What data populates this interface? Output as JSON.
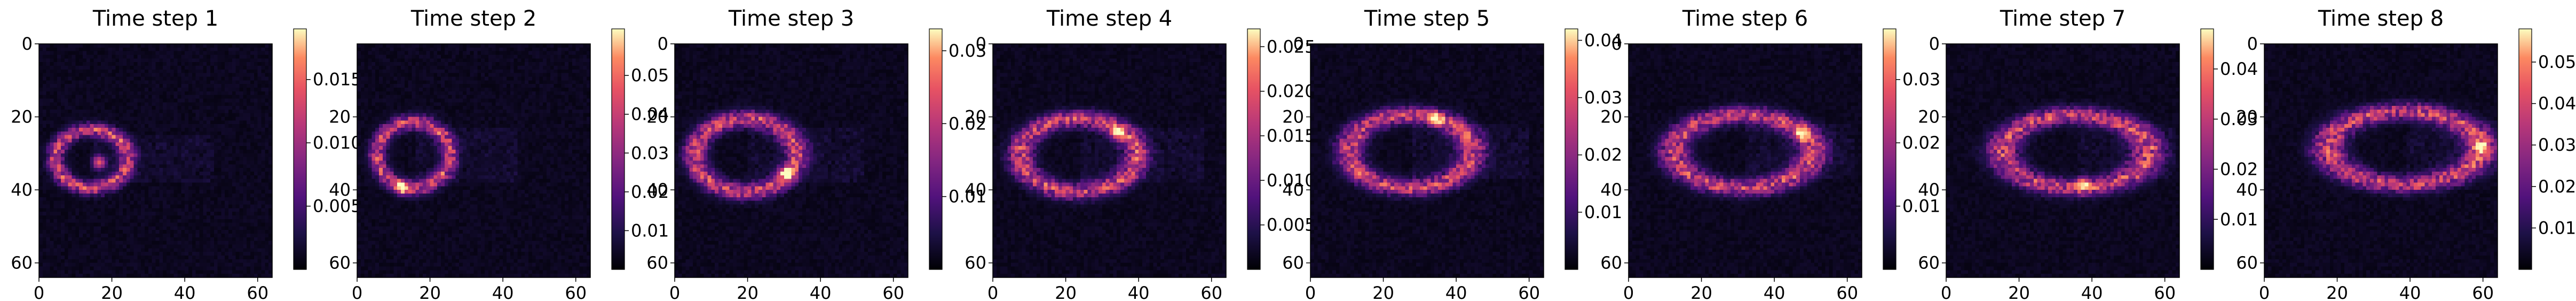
{
  "chart_data": {
    "type": "heatmap",
    "colormap": "magma",
    "grid": false,
    "panels": [
      {
        "title": "Time step 1",
        "xticks": [
          "0",
          "20",
          "40",
          "60"
        ],
        "yticks": [
          "0",
          "20",
          "40",
          "60"
        ],
        "xlim": [
          0,
          64
        ],
        "ylim": [
          64,
          0
        ],
        "colorbar": {
          "range": [
            0,
            0.019
          ],
          "ticks": [
            "0.005",
            "0.010",
            "0.015"
          ],
          "tick_values": [
            0.005,
            0.01,
            0.015
          ]
        },
        "feature": {
          "cx": 14,
          "cy": 31,
          "rx": 10,
          "ry": 8,
          "tail": 48,
          "peak_x": 16,
          "peak_y": 32
        }
      },
      {
        "title": "Time step 2",
        "xticks": [
          "0",
          "20",
          "40",
          "60"
        ],
        "yticks": [
          "20",
          "40",
          "60"
        ],
        "xlim": [
          0,
          64
        ],
        "ylim": [
          64,
          0
        ],
        "colorbar": {
          "range": [
            0,
            0.062
          ],
          "ticks": [
            "0.01",
            "0.02",
            "0.03",
            "0.04",
            "0.05"
          ],
          "tick_values": [
            0.01,
            0.02,
            0.03,
            0.04,
            0.05
          ]
        },
        "feature": {
          "cx": 15,
          "cy": 30,
          "rx": 10,
          "ry": 9,
          "tail": 44,
          "peak_x": 12,
          "peak_y": 39
        }
      },
      {
        "title": "Time step 3",
        "xticks": [
          "0",
          "20",
          "40",
          "60"
        ],
        "yticks": [
          "0",
          "20",
          "40",
          "60"
        ],
        "xlim": [
          0,
          64
        ],
        "ylim": [
          64,
          0
        ],
        "colorbar": {
          "range": [
            0,
            0.033
          ],
          "ticks": [
            "0.01",
            "0.02",
            "0.03"
          ],
          "tick_values": [
            0.01,
            0.02,
            0.03
          ]
        },
        "feature": {
          "cx": 19,
          "cy": 30,
          "rx": 14,
          "ry": 10,
          "tail": 52,
          "peak_x": 30,
          "peak_y": 35
        }
      },
      {
        "title": "Time step 4",
        "xticks": [
          "0",
          "20",
          "40",
          "60"
        ],
        "yticks": [
          "0",
          "20",
          "40",
          "60"
        ],
        "xlim": [
          0,
          64
        ],
        "ylim": [
          64,
          0
        ],
        "colorbar": {
          "range": [
            0,
            0.027
          ],
          "ticks": [
            "0.005",
            "0.010",
            "0.015",
            "0.020",
            "0.025"
          ],
          "tick_values": [
            0.005,
            0.01,
            0.015,
            0.02,
            0.025
          ]
        },
        "feature": {
          "cx": 23,
          "cy": 30,
          "rx": 16,
          "ry": 10,
          "tail": 58,
          "peak_x": 34,
          "peak_y": 24
        }
      },
      {
        "title": "Time step 5",
        "xticks": [
          "0",
          "20",
          "40",
          "60"
        ],
        "yticks": [
          "0",
          "20",
          "40",
          "60"
        ],
        "xlim": [
          0,
          64
        ],
        "ylim": [
          64,
          0
        ],
        "colorbar": {
          "range": [
            0,
            0.042
          ],
          "ticks": [
            "0.01",
            "0.02",
            "0.03",
            "0.04"
          ],
          "tick_values": [
            0.01,
            0.02,
            0.03,
            0.04
          ]
        },
        "feature": {
          "cx": 27,
          "cy": 29,
          "rx": 17,
          "ry": 10,
          "tail": 60,
          "peak_x": 34,
          "peak_y": 20
        }
      },
      {
        "title": "Time step 6",
        "xticks": [
          "0",
          "20",
          "40",
          "60"
        ],
        "yticks": [
          "0",
          "20",
          "40",
          "60"
        ],
        "xlim": [
          0,
          64
        ],
        "ylim": [
          64,
          0
        ],
        "colorbar": {
          "range": [
            0,
            0.038
          ],
          "ticks": [
            "0.01",
            "0.02",
            "0.03"
          ],
          "tick_values": [
            0.01,
            0.02,
            0.03
          ]
        },
        "feature": {
          "cx": 31,
          "cy": 29,
          "rx": 19,
          "ry": 10,
          "tail": 62,
          "peak_x": 47,
          "peak_y": 24
        }
      },
      {
        "title": "Time step 7",
        "xticks": [
          "0",
          "20",
          "40",
          "60"
        ],
        "yticks": [
          "0",
          "20",
          "40",
          "60"
        ],
        "xlim": [
          0,
          64
        ],
        "ylim": [
          64,
          0
        ],
        "colorbar": {
          "range": [
            0,
            0.048
          ],
          "ticks": [
            "0.01",
            "0.02",
            "0.03",
            "0.04"
          ],
          "tick_values": [
            0.01,
            0.02,
            0.03,
            0.04
          ]
        },
        "feature": {
          "cx": 35,
          "cy": 29,
          "rx": 20,
          "ry": 10,
          "tail": 63,
          "peak_x": 37,
          "peak_y": 38
        }
      },
      {
        "title": "Time step 8",
        "xticks": [
          "0",
          "20",
          "40",
          "60"
        ],
        "yticks": [
          "0",
          "20",
          "40",
          "60"
        ],
        "xlim": [
          0,
          64
        ],
        "ylim": [
          64,
          0
        ],
        "colorbar": {
          "range": [
            0,
            0.058
          ],
          "ticks": [
            "0.01",
            "0.02",
            "0.03",
            "0.04",
            "0.05"
          ],
          "tick_values": [
            0.01,
            0.02,
            0.03,
            0.04,
            0.05
          ]
        },
        "feature": {
          "cx": 38,
          "cy": 28,
          "rx": 21,
          "ry": 10,
          "tail": 64,
          "peak_x": 59,
          "peak_y": 28
        }
      }
    ]
  }
}
